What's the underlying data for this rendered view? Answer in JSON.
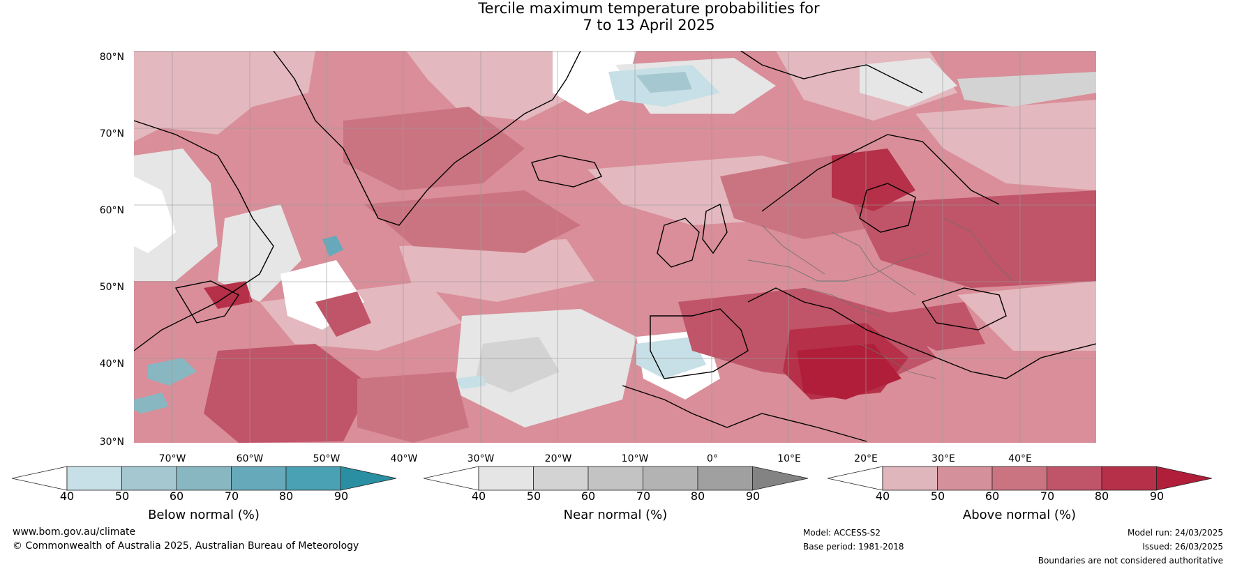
{
  "title": {
    "line1": "Tercile maximum temperature probabilities for",
    "line2": "7 to 13 April 2025"
  },
  "latitudes": [
    "80°N",
    "70°N",
    "60°N",
    "50°N",
    "40°N",
    "30°N"
  ],
  "longitudes": [
    "70°W",
    "60°W",
    "50°W",
    "40°W",
    "30°W",
    "20°W",
    "10°W",
    "0°",
    "10°E",
    "20°E",
    "30°E",
    "40°E"
  ],
  "colorbars": [
    {
      "label": "Below normal (%)",
      "ticks": [
        "40",
        "50",
        "60",
        "70",
        "80",
        "90"
      ],
      "colors": [
        "#ffffff",
        "#c7dfe6",
        "#a5c7cf",
        "#88b7c2",
        "#66a9ba",
        "#4aa1b3",
        "#2b8fa3"
      ]
    },
    {
      "label": "Near normal (%)",
      "ticks": [
        "40",
        "50",
        "60",
        "70",
        "80",
        "90"
      ],
      "colors": [
        "#ffffff",
        "#e5e5e5",
        "#d3d3d3",
        "#c3c3c3",
        "#b3b3b3",
        "#a0a0a0",
        "#838383"
      ]
    },
    {
      "label": "Above normal (%)",
      "ticks": [
        "40",
        "50",
        "60",
        "70",
        "80",
        "90"
      ],
      "colors": [
        "#ffffff",
        "#e0b6bd",
        "#d4919b",
        "#cb7481",
        "#c05468",
        "#b53048",
        "#b01e3a"
      ]
    }
  ],
  "footer": {
    "website": "www.bom.gov.au/climate",
    "copyright": "© Commonwealth of Australia 2025, Australian Bureau of Meteorology",
    "model": "Model: ACCESS-S2",
    "base_period": "Base period: 1981-2018",
    "model_run": "Model run: 24/03/2025",
    "issued": "Issued: 26/03/2025",
    "disclaimer": "Boundaries are not considered authoritative"
  }
}
